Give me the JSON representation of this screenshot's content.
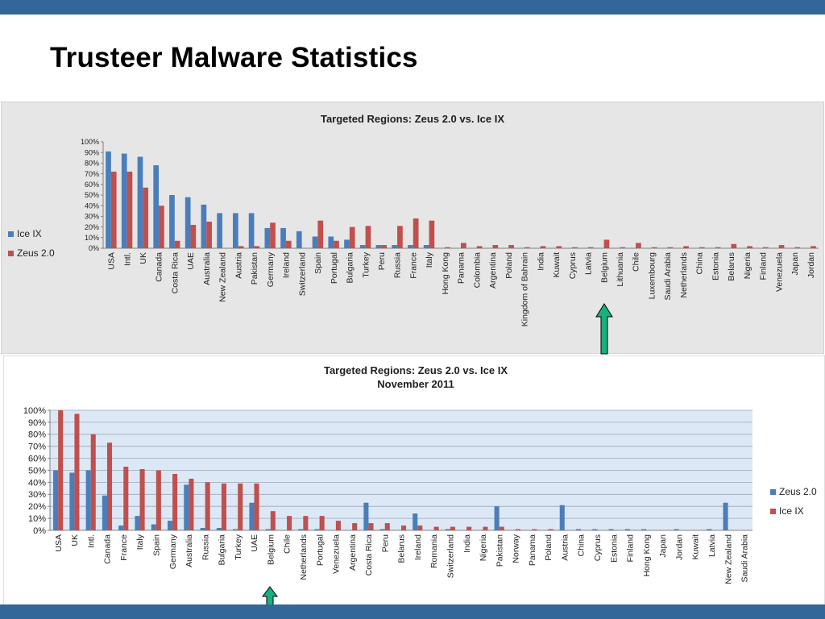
{
  "slide": {
    "title": "Trusteer Malware Statistics"
  },
  "colors": {
    "band": "#336699",
    "blue": "#4A7EBB",
    "red": "#C0504D",
    "arrow": "#1AAF7E"
  },
  "chart_data": [
    {
      "type": "bar",
      "title": "Targeted Regions: Zeus 2.0 vs. Ice IX",
      "subtitle": "",
      "ylim": [
        0,
        100
      ],
      "yticks": [
        "0%",
        "10%",
        "20%",
        "30%",
        "40%",
        "50%",
        "60%",
        "70%",
        "80%",
        "90%",
        "100%"
      ],
      "grid": false,
      "legend": "left",
      "categories": [
        "USA",
        "Intl.",
        "UK",
        "Canada",
        "Costa Rica",
        "UAE",
        "Australia",
        "New Zealand",
        "Austria",
        "Pakistan",
        "Germany",
        "Ireland",
        "Switzerland",
        "Spain",
        "Portugal",
        "Bulgaria",
        "Turkey",
        "Peru",
        "Russia",
        "France",
        "Italy",
        "Hong Kong",
        "Panama",
        "Colombia",
        "Argentina",
        "Poland",
        "Kingdom of Bahrain",
        "India",
        "Kuwait",
        "Cyprus",
        "Latvia",
        "Belgium",
        "Lithuania",
        "Chile",
        "Luxembourg",
        "Saudi Arabia",
        "Netherlands",
        "China",
        "Estonia",
        "Belarus",
        "Nigeria",
        "Finland",
        "Venezuela",
        "Japan",
        "Jordan"
      ],
      "series": [
        {
          "name": "Ice IX",
          "color": "#4A7EBB",
          "values": [
            91,
            89,
            86,
            78,
            50,
            48,
            41,
            33,
            33,
            33,
            19,
            19,
            16,
            11,
            11,
            8,
            3,
            3,
            3,
            3,
            3,
            0,
            0,
            0,
            0,
            0,
            0,
            0,
            0,
            0,
            0,
            0,
            0,
            0,
            0,
            0,
            0,
            0,
            0,
            0,
            0,
            0,
            0,
            0,
            0
          ]
        },
        {
          "name": "Zeus 2.0",
          "color": "#C0504D",
          "values": [
            72,
            72,
            57,
            40,
            7,
            22,
            25,
            0,
            2,
            2,
            24,
            7,
            0,
            26,
            7,
            20,
            21,
            3,
            21,
            28,
            26,
            1,
            5,
            2,
            3,
            3,
            1,
            2,
            2,
            1,
            1,
            8,
            1,
            5,
            1,
            1,
            2,
            1,
            1,
            4,
            2,
            1,
            3,
            1,
            2
          ]
        }
      ]
    },
    {
      "type": "bar",
      "title": "Targeted Regions: Zeus 2.0 vs. Ice IX",
      "subtitle": "November 2011",
      "ylim": [
        0,
        100
      ],
      "yticks": [
        "0%",
        "10%",
        "20%",
        "30%",
        "40%",
        "50%",
        "60%",
        "70%",
        "80%",
        "90%",
        "100%"
      ],
      "grid": true,
      "legend": "right",
      "categories": [
        "USA",
        "UK",
        "Intl.",
        "Canada",
        "France",
        "Italy",
        "Spain",
        "Germany",
        "Australia",
        "Russia",
        "Bulgaria",
        "Turkey",
        "UAE",
        "Belgium",
        "Chile",
        "Netherlands",
        "Portugal",
        "Venezuela",
        "Argentina",
        "Costa Rica",
        "Peru",
        "Belarus",
        "Ireland",
        "Romania",
        "Switzerland",
        "India",
        "Nigeria",
        "Pakistan",
        "Norway",
        "Panama",
        "Poland",
        "Austria",
        "China",
        "Cyprus",
        "Estonia",
        "Finland",
        "Hong Kong",
        "Japan",
        "Jordan",
        "Kuwait",
        "Latvia",
        "New Zealand",
        "Saudi Arabia"
      ],
      "series": [
        {
          "name": "Zeus 2.0",
          "color": "#4A7EBB",
          "values": [
            50,
            48,
            50,
            29,
            4,
            12,
            5,
            8,
            38,
            2,
            2,
            1,
            23,
            1,
            0,
            1,
            1,
            0,
            0,
            23,
            1,
            0,
            14,
            0,
            1,
            0,
            0,
            20,
            0,
            0,
            0,
            21,
            1,
            1,
            1,
            1,
            1,
            0,
            1,
            0,
            1,
            23,
            0
          ]
        },
        {
          "name": "Ice IX",
          "color": "#C0504D",
          "values": [
            100,
            97,
            80,
            73,
            53,
            51,
            50,
            47,
            43,
            40,
            39,
            39,
            39,
            16,
            12,
            12,
            12,
            8,
            6,
            6,
            6,
            4,
            4,
            3,
            3,
            3,
            3,
            3,
            1,
            1,
            1,
            0,
            0,
            0,
            0,
            0,
            0,
            0,
            0,
            0,
            0,
            0,
            0
          ]
        }
      ]
    }
  ]
}
